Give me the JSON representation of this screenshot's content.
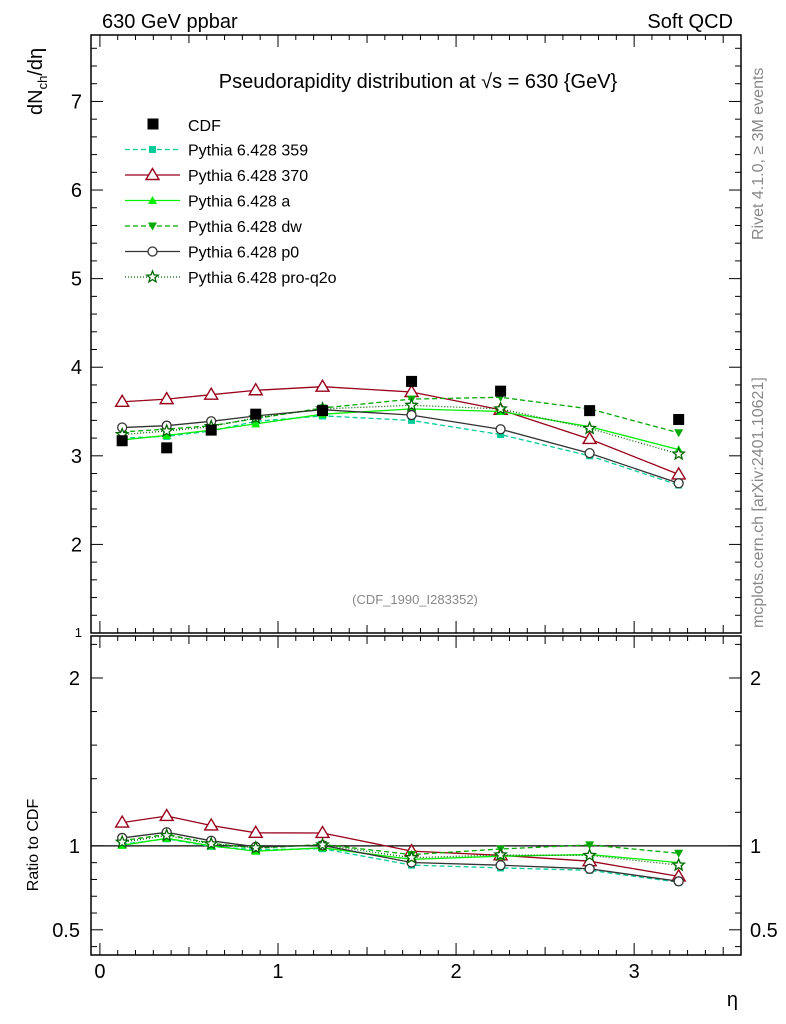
{
  "header": {
    "left": "630 GeV ppbar",
    "right": "Soft QCD"
  },
  "side": {
    "version": "Rivet 4.1.0, ≥ 3M events",
    "source": "mcplots.cern.ch [arXiv:2401.10621]"
  },
  "chart_data": {
    "type": "line",
    "title": "Pseudorapidity distribution at √s = 630 {GeV}",
    "analysis_label": "(CDF_1990_I283352)",
    "xlabel": "η",
    "ylabel": "dN_ch/dη",
    "ylabel_main": "dN",
    "ylabel_sub": "ch",
    "ylabel_tail": "/dη",
    "ratio_ylabel": "Ratio to CDF",
    "xlim": [
      -0.05,
      3.6
    ],
    "ylim": [
      1.0,
      7.75
    ],
    "ratio_ylim": [
      0.35,
      2.25
    ],
    "x_ticks": [
      0,
      1,
      2,
      3
    ],
    "x_tick_labels": [
      "0",
      "1",
      "2",
      "3"
    ],
    "y_ticks": [
      2,
      3,
      4,
      5,
      6,
      7
    ],
    "y_tick_labels": [
      "2",
      "3",
      "4",
      "5",
      "6",
      "7"
    ],
    "y_tick_bottom_label": "1",
    "ratio_ticks": [
      0.5,
      1,
      2
    ],
    "ratio_tick_labels": [
      "0.5",
      "1",
      "2"
    ],
    "data": {
      "name": "CDF",
      "x": [
        0.125,
        0.375,
        0.625,
        0.875,
        1.25,
        1.75,
        2.25,
        2.75,
        3.25
      ],
      "y": [
        3.17,
        3.09,
        3.29,
        3.47,
        3.51,
        3.84,
        3.73,
        3.51,
        3.41
      ]
    },
    "mc_x": [
      0.125,
      0.375,
      0.625,
      0.875,
      1.25,
      1.75,
      2.25,
      2.75,
      3.25
    ],
    "series": [
      {
        "name": "Pythia 6.428 359",
        "color": "#00cc99",
        "dash": "5,3",
        "marker": "square",
        "values": [
          3.2,
          3.22,
          3.28,
          3.39,
          3.45,
          3.4,
          3.24,
          3.0,
          2.67
        ]
      },
      {
        "name": "Pythia 6.428 370",
        "color": "#99001a",
        "dash": "",
        "marker": "triangle-open",
        "values": [
          3.61,
          3.64,
          3.69,
          3.74,
          3.78,
          3.72,
          3.52,
          3.19,
          2.79
        ]
      },
      {
        "name": "Pythia 6.428 a",
        "color": "#00ee00",
        "dash": "",
        "marker": "triangle",
        "values": [
          3.18,
          3.23,
          3.29,
          3.36,
          3.47,
          3.53,
          3.5,
          3.33,
          3.07
        ]
      },
      {
        "name": "Pythia 6.428 dw",
        "color": "#00aa00",
        "dash": "5,3",
        "marker": "triangle-down",
        "values": [
          3.27,
          3.3,
          3.34,
          3.42,
          3.54,
          3.64,
          3.66,
          3.53,
          3.26
        ]
      },
      {
        "name": "Pythia 6.428 p0",
        "color": "#333333",
        "dash": "",
        "marker": "circle-open",
        "values": [
          3.32,
          3.34,
          3.39,
          3.45,
          3.52,
          3.46,
          3.3,
          3.03,
          2.69
        ]
      },
      {
        "name": "Pythia 6.428 pro-q2o",
        "color": "#006600",
        "dash": "1,2",
        "marker": "star",
        "values": [
          3.24,
          3.28,
          3.33,
          3.43,
          3.53,
          3.57,
          3.53,
          3.31,
          3.02
        ]
      }
    ]
  }
}
